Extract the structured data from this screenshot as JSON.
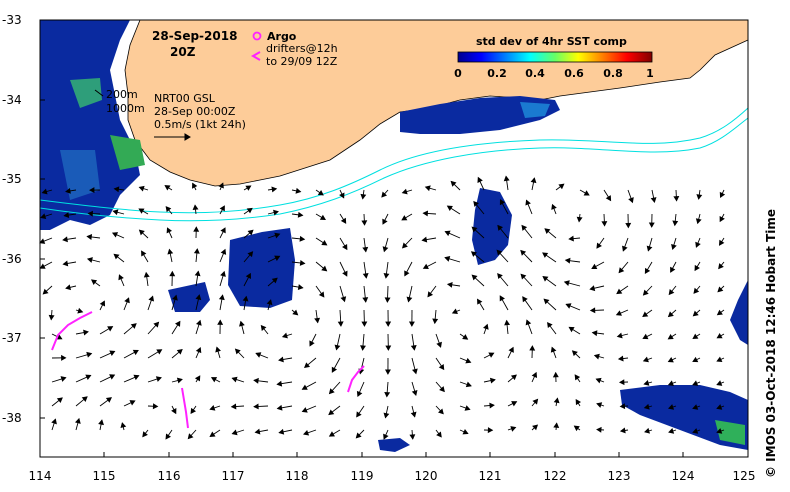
{
  "map": {
    "date_line1": "28-Sep-2018",
    "date_line2": "20Z",
    "legend_argo": "Argo",
    "legend_drifters1": "drifters@12h",
    "legend_drifters2": "to 29/09 12Z",
    "isobath_200": "200m",
    "isobath_1000": "1000m",
    "model_name": "NRT00 GSL",
    "model_time": "28-Sep 00:00Z",
    "scale_arrow": "0.5m/s (1kt 24h)",
    "colorbar_title": "std dev of 4hr SST comp",
    "colorbar_ticks": [
      "0",
      "0.2",
      "0.4",
      "0.6",
      "0.8",
      "1"
    ],
    "x_ticks": [
      "114",
      "115",
      "116",
      "117",
      "118",
      "119",
      "120",
      "121",
      "122",
      "123",
      "124",
      "125"
    ],
    "y_ticks": [
      "-33",
      "-34",
      "-35",
      "-36",
      "-37",
      "-38"
    ],
    "credit": "© IMOS 03-Oct-2018 12:46 Hobart Time",
    "colors": {
      "land": "#fdcc99",
      "shelf_contour": "#00e0e0",
      "drifter": "#ff22ff",
      "current_arrow": "#000000",
      "sst_low": "#0022aa",
      "sst_mid": "#33aa66"
    }
  }
}
